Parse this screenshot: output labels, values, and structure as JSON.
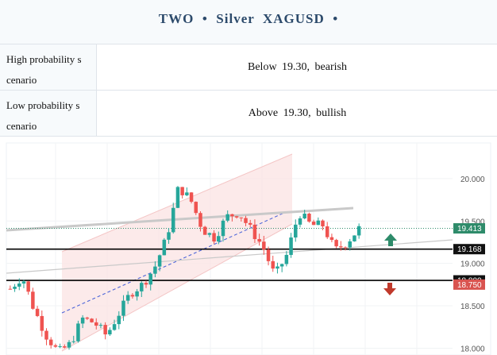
{
  "header": {
    "title": "TWO  •  Silver  XAGUSD  •"
  },
  "scenarios": [
    {
      "label": "High probability s cenario",
      "value": "Below 19.30, bearish"
    },
    {
      "label": "Low probability s cenario",
      "value": "Above 19.30, bullish"
    }
  ],
  "colors": {
    "up": "#26a69a",
    "down": "#ef5350",
    "accent": "#2c4a6b",
    "current": "#2e8b6a"
  },
  "chart_data": {
    "type": "candlestick",
    "symbol": "XAGUSD",
    "ylim": [
      17.92,
      20.42
    ],
    "yticks": [
      "20.000",
      "19.500",
      "19.000",
      "18.500",
      "18.000"
    ],
    "current_price": "19.413",
    "levels": [
      {
        "value": 19.168,
        "label": "19.168",
        "color": "#000000"
      },
      {
        "value": 18.8,
        "label": "18.800",
        "color": "#000000"
      },
      {
        "value": 18.75,
        "label": "18.750",
        "color": "#d9534f"
      }
    ],
    "annotations": [
      {
        "type": "arrow-up",
        "color": "#2e8b6a"
      },
      {
        "type": "arrow-down",
        "color": "#c0392b"
      }
    ],
    "close_path": [
      18.7,
      18.85,
      18.45,
      18.15,
      17.95,
      18.05,
      18.35,
      18.3,
      18.15,
      18.4,
      18.65,
      18.75,
      18.95,
      19.3,
      19.9,
      19.75,
      19.4,
      19.3,
      19.55,
      19.6,
      19.4,
      19.2,
      18.85,
      19.1,
      19.6,
      19.45,
      19.45,
      19.15,
      19.25,
      19.41
    ]
  }
}
